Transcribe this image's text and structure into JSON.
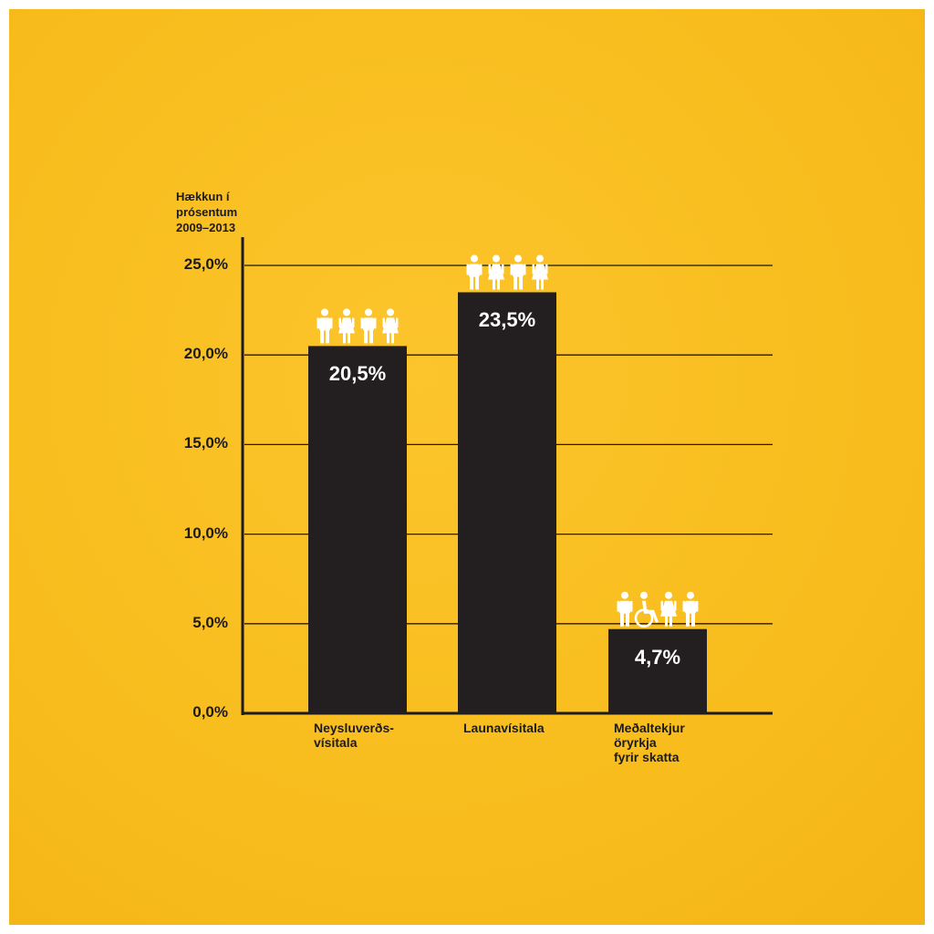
{
  "chart_data": {
    "type": "bar",
    "ylabel": "Hækkun í\nprósentum\n2009–2013",
    "categories": [
      "Neysluverðs-\nvísitala",
      "Launavísitala",
      "Meðaltekjur\nöryrkja\nfyrir skatta"
    ],
    "values": [
      20.5,
      23.5,
      4.7
    ],
    "data_labels": [
      "20,5%",
      "23,5%",
      "4,7%"
    ],
    "ylim": [
      0,
      25
    ],
    "yticks": [
      0,
      5,
      10,
      15,
      20,
      25
    ],
    "ytick_labels": [
      "0,0%",
      "5,0%",
      "10,0%",
      "15,0%",
      "20,0%",
      "25,0%"
    ],
    "grid": true,
    "icons": [
      [
        "man-icon",
        "woman-icon",
        "man-icon",
        "woman-icon"
      ],
      [
        "man-icon",
        "woman-icon",
        "man-icon",
        "woman-icon"
      ],
      [
        "man-icon",
        "wheelchair-user-icon",
        "woman-icon",
        "man-icon"
      ]
    ]
  },
  "colors": {
    "background": "#f8bd1d",
    "bar": "#231f20",
    "axis": "#1d1b1a",
    "label_text": "#ffffff",
    "icons": "#ffffff"
  }
}
